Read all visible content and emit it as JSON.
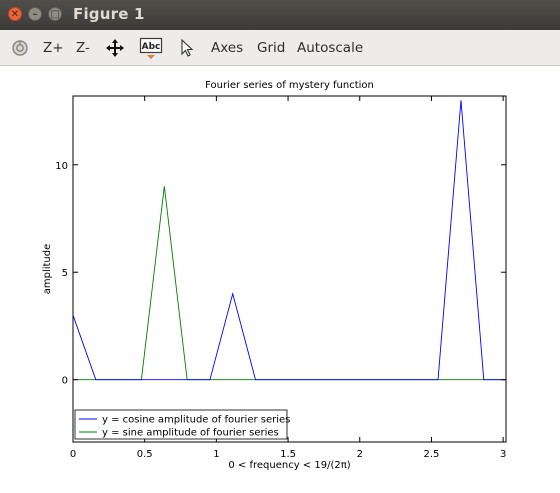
{
  "window": {
    "title": "Figure 1"
  },
  "toolbar": {
    "items": [
      {
        "label": "",
        "icon": "rotate-icon"
      },
      {
        "label": "Z+"
      },
      {
        "label": "Z-"
      },
      {
        "label": "",
        "icon": "pan-icon"
      },
      {
        "label": "Abc",
        "icon": "insert-text-icon"
      },
      {
        "label": "",
        "icon": "select-arrow-icon"
      },
      {
        "label": "Axes"
      },
      {
        "label": "Grid"
      },
      {
        "label": "Autoscale"
      }
    ]
  },
  "chart_data": {
    "type": "line",
    "title": "Fourier series of mystery function",
    "xlabel": "0 < frequency < 19/(2π)",
    "ylabel": "amplitude",
    "xlim": [
      0,
      3.02
    ],
    "ylim": [
      -2.9,
      13.2
    ],
    "xticks": [
      0,
      0.5,
      1,
      1.5,
      2,
      2.5,
      3
    ],
    "xtick_labels": [
      "0",
      "0.5",
      "1",
      "1.5",
      "2",
      "2.5",
      "3"
    ],
    "yticks": [
      0,
      5,
      10
    ],
    "ytick_labels": [
      "0",
      "5",
      "10"
    ],
    "grid": false,
    "legend_position": "bottom-left",
    "series": [
      {
        "name": "y = cosine amplitude of fourier series",
        "color": "#0000ff",
        "x": [
          0,
          0.159,
          0.318,
          0.477,
          0.637,
          0.796,
          0.955,
          1.114,
          1.273,
          1.432,
          1.592,
          1.751,
          1.91,
          2.069,
          2.228,
          2.387,
          2.546,
          2.706,
          2.865,
          3.02
        ],
        "values": [
          3,
          0,
          0,
          0,
          0,
          0,
          0,
          4,
          0,
          0,
          0,
          0,
          0,
          0,
          0,
          0,
          0,
          13,
          0,
          0
        ]
      },
      {
        "name": "y = sine amplitude of fourier series",
        "color": "#008000",
        "x": [
          0,
          0.159,
          0.318,
          0.477,
          0.637,
          0.796,
          0.955,
          1.114,
          1.273,
          1.432,
          1.592,
          1.751,
          1.91,
          2.069,
          2.228,
          2.387,
          2.546,
          2.706,
          2.865,
          3.02
        ],
        "values": [
          0,
          0,
          0,
          0,
          9,
          0,
          0,
          0,
          0,
          0,
          0,
          0,
          0,
          0,
          0,
          0,
          0,
          0,
          0,
          0
        ]
      }
    ]
  }
}
